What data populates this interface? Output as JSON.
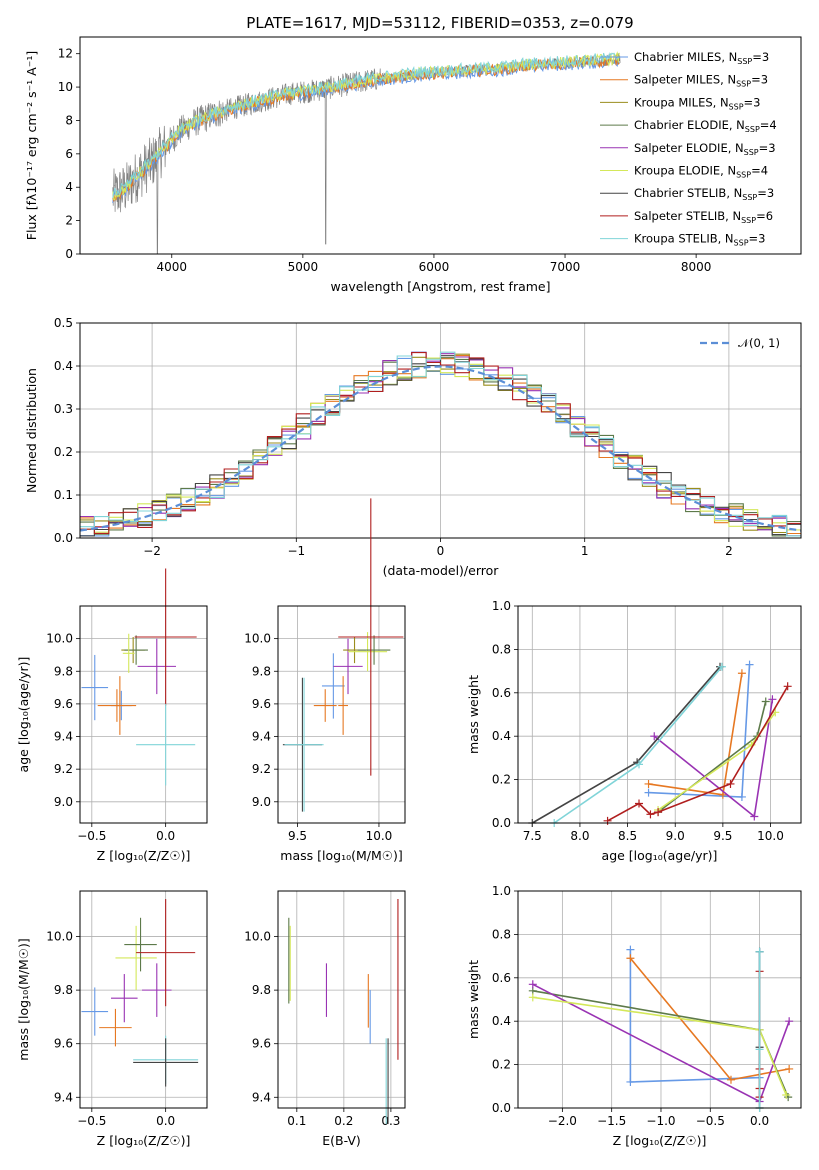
{
  "figure": {
    "title": "PLATE=1617, MJD=53112, FIBERID=0353, z=0.079"
  },
  "colors": {
    "Chabrier MILES": "#6699e6",
    "Salpeter MILES": "#e67822",
    "Kroupa MILES": "#9a8d1d",
    "Chabrier ELODIE": "#5d7a4a",
    "Salpeter ELODIE": "#9933b3",
    "Kroupa ELODIE": "#d4e85a",
    "Chabrier STELIB": "#444444",
    "Salpeter STELIB": "#b01e1e",
    "Kroupa STELIB": "#80d4d8",
    "data": "#808080",
    "normal": "#5b8ed6"
  },
  "chart_data": [
    {
      "id": "spectrum",
      "type": "line",
      "xlabel": "wavelength [Angstrom, rest frame]",
      "ylabel": "Flux [fλ10⁻¹⁷ erg cm⁻² s⁻¹ A⁻¹]",
      "xlim": [
        3300,
        8800
      ],
      "ylim": [
        0,
        13
      ],
      "xticks": [
        4000,
        5000,
        6000,
        7000,
        8000
      ],
      "yticks": [
        0,
        2,
        4,
        6,
        8,
        10,
        12
      ],
      "legend_position": "right",
      "continuum": {
        "x": [
          3550,
          3650,
          3750,
          3850,
          3950,
          4050,
          4150,
          4300,
          4500,
          4700,
          4900,
          5100,
          5300,
          5500,
          5700,
          5900,
          6100,
          6300,
          6500,
          6700,
          6900,
          7100,
          7300,
          7420
        ],
        "y": [
          3.5,
          3.9,
          4.8,
          5.5,
          6.4,
          7.3,
          7.8,
          8.3,
          8.8,
          9.2,
          9.6,
          9.8,
          10.1,
          10.4,
          10.6,
          10.8,
          10.9,
          11.0,
          11.1,
          11.3,
          11.4,
          11.5,
          11.6,
          11.7
        ]
      },
      "series": [
        {
          "name": "Chabrier MILES, N_SSP=3",
          "label_main": "Chabrier MILES, N",
          "label_sub": "SSP",
          "label_tail": "=3"
        },
        {
          "name": "Salpeter MILES, N_SSP=3",
          "label_main": "Salpeter MILES, N",
          "label_sub": "SSP",
          "label_tail": "=3"
        },
        {
          "name": "Kroupa MILES, N_SSP=3",
          "label_main": "Kroupa MILES, N",
          "label_sub": "SSP",
          "label_tail": "=3"
        },
        {
          "name": "Chabrier ELODIE, N_SSP=4",
          "label_main": "Chabrier ELODIE, N",
          "label_sub": "SSP",
          "label_tail": "=4"
        },
        {
          "name": "Salpeter ELODIE, N_SSP=3",
          "label_main": "Salpeter ELODIE, N",
          "label_sub": "SSP",
          "label_tail": "=3"
        },
        {
          "name": "Kroupa ELODIE, N_SSP=4",
          "label_main": "Kroupa ELODIE, N",
          "label_sub": "SSP",
          "label_tail": "=4"
        },
        {
          "name": "Chabrier STELIB, N_SSP=3",
          "label_main": "Chabrier STELIB, N",
          "label_sub": "SSP",
          "label_tail": "=3"
        },
        {
          "name": "Salpeter STELIB, N_SSP=6",
          "label_main": "Salpeter STELIB, N",
          "label_sub": "SSP",
          "label_tail": "=6"
        },
        {
          "name": "Kroupa STELIB, N_SSP=3",
          "label_main": "Kroupa STELIB, N",
          "label_sub": "SSP",
          "label_tail": "=3"
        }
      ]
    },
    {
      "id": "residuals",
      "type": "line",
      "xlabel": "(data-model)/error",
      "ylabel": "Normed distribution",
      "xlim": [
        -2.5,
        2.5
      ],
      "ylim": [
        0,
        0.5
      ],
      "xticks": [
        -2,
        -1,
        0,
        1,
        2
      ],
      "yticks": [
        0.0,
        0.1,
        0.2,
        0.3,
        0.4,
        0.5
      ],
      "grid": true,
      "legend_position": "top-right",
      "legend_label": "𝒩(0, 1)",
      "bin_width": 0.1
    },
    {
      "id": "age-vs-Z",
      "type": "scatter",
      "xlabel": "Z [log₁₀(Z/Z☉)]",
      "ylabel": "age  [log₁₀(age/yr)]",
      "xlim": [
        -0.58,
        0.28
      ],
      "ylim": [
        8.87,
        10.2
      ],
      "xticks": [
        -0.5,
        0.0
      ],
      "yticks": [
        9.0,
        9.2,
        9.4,
        9.6,
        9.8,
        10.0
      ],
      "grid": true,
      "points": [
        {
          "model": "Chabrier MILES",
          "x": -0.48,
          "xerr": 0.09,
          "y": 9.7,
          "yerr": 0.2
        },
        {
          "model": "Chabrier MILES",
          "x": -0.3,
          "xerr": 0.07,
          "y": 9.59,
          "yerr": 0.09
        },
        {
          "model": "Salpeter MILES",
          "x": -0.33,
          "xerr": 0.13,
          "y": 9.59,
          "yerr": 0.1
        },
        {
          "model": "Kroupa MILES",
          "x": -0.22,
          "xerr": 0.08,
          "y": 9.93,
          "yerr": 0.08
        },
        {
          "model": "Chabrier ELODIE",
          "x": -0.2,
          "xerr": 0.08,
          "y": 9.93,
          "yerr": 0.09
        },
        {
          "model": "Salpeter ELODIE",
          "x": -0.06,
          "xerr": 0.13,
          "y": 9.83,
          "yerr": 0.17
        },
        {
          "model": "Kroupa ELODIE",
          "x": -0.25,
          "xerr": 0.04,
          "y": 9.91,
          "yerr": 0.12
        },
        {
          "model": "Salpeter STELIB",
          "x": 0.0,
          "xerr": 0.21,
          "y": 10.01,
          "yerr": 0.42
        },
        {
          "model": "Kroupa STELIB",
          "x": 0.0,
          "xerr": 0.2,
          "y": 9.35,
          "yerr": 0.25
        },
        {
          "model": "Salpeter MILES",
          "x": -0.31,
          "xerr": 0.03,
          "y": 9.59,
          "yerr": 0.18
        }
      ]
    },
    {
      "id": "age-vs-mass",
      "type": "scatter",
      "xlabel": "mass [log₁₀(M/M☉)]",
      "ylabel": "",
      "xlim": [
        9.38,
        10.16
      ],
      "ylim": [
        8.87,
        10.2
      ],
      "xticks": [
        9.5,
        10.0
      ],
      "yticks": [
        9.0,
        9.2,
        9.4,
        9.6,
        9.8,
        10.0
      ],
      "grid": true,
      "points": [
        {
          "model": "Chabrier STELIB",
          "x": 9.53,
          "xerr": 0.12,
          "y": 9.35,
          "yerr": 0.41
        },
        {
          "model": "Kroupa STELIB",
          "x": 9.54,
          "xerr": 0.12,
          "y": 9.35,
          "yerr": 0.41
        },
        {
          "model": "Chabrier MILES",
          "x": 9.72,
          "xerr": 0.07,
          "y": 9.71,
          "yerr": 0.2
        },
        {
          "model": "Salpeter MILES",
          "x": 9.67,
          "xerr": 0.07,
          "y": 9.59,
          "yerr": 0.1
        },
        {
          "model": "Salpeter ELODIE",
          "x": 9.81,
          "xerr": 0.09,
          "y": 9.83,
          "yerr": 0.17
        },
        {
          "model": "Kroupa MILES",
          "x": 9.85,
          "xerr": 0.07,
          "y": 9.93,
          "yerr": 0.08
        },
        {
          "model": "Kroupa ELODIE",
          "x": 9.93,
          "xerr": 0.12,
          "y": 9.92,
          "yerr": 0.12
        },
        {
          "model": "Chabrier ELODIE",
          "x": 9.97,
          "xerr": 0.1,
          "y": 9.93,
          "yerr": 0.09
        },
        {
          "model": "Salpeter STELIB",
          "x": 9.95,
          "xerr": 0.2,
          "y": 10.01,
          "yerr": 0.85
        },
        {
          "model": "Salpeter MILES",
          "x": 9.78,
          "xerr": 0.03,
          "y": 9.59,
          "yerr": 0.18
        }
      ]
    },
    {
      "id": "weight-vs-age",
      "type": "line",
      "xlabel": "age  [log₁₀(age/yr)]",
      "ylabel": "mass weight",
      "xlim": [
        7.35,
        10.32
      ],
      "ylim": [
        0,
        1
      ],
      "xticks": [
        7.5,
        8.0,
        8.5,
        9.0,
        9.5,
        10.0
      ],
      "yticks": [
        0.0,
        0.2,
        0.4,
        0.6,
        0.8,
        1.0
      ],
      "grid": true,
      "series": [
        {
          "model": "Chabrier MILES",
          "x": [
            9.78,
            9.7,
            8.72
          ],
          "y": [
            0.73,
            0.12,
            0.14
          ]
        },
        {
          "model": "Salpeter MILES",
          "x": [
            9.7,
            9.5,
            8.72
          ],
          "y": [
            0.69,
            0.13,
            0.18
          ]
        },
        {
          "model": "Chabrier ELODIE",
          "x": [
            9.95,
            9.86,
            8.82
          ],
          "y": [
            0.56,
            0.4,
            0.05
          ]
        },
        {
          "model": "Salpeter ELODIE",
          "x": [
            10.02,
            9.83,
            8.78
          ],
          "y": [
            0.57,
            0.03,
            0.4
          ]
        },
        {
          "model": "Kroupa ELODIE",
          "x": [
            10.05,
            9.8,
            8.82
          ],
          "y": [
            0.51,
            0.36,
            0.06
          ]
        },
        {
          "model": "Chabrier STELIB",
          "x": [
            9.47,
            8.6,
            7.5
          ],
          "y": [
            0.72,
            0.28,
            0.0
          ]
        },
        {
          "model": "Salpeter STELIB",
          "x": [
            10.18,
            9.58,
            8.82,
            8.74,
            8.62,
            8.29
          ],
          "y": [
            0.63,
            0.18,
            0.05,
            0.04,
            0.09,
            0.01
          ]
        },
        {
          "model": "Kroupa STELIB",
          "x": [
            9.49,
            8.62,
            7.73
          ],
          "y": [
            0.72,
            0.27,
            0.0
          ]
        }
      ]
    },
    {
      "id": "mass-vs-Z",
      "type": "scatter",
      "xlabel": "Z [log₁₀(Z/Z☉)]",
      "ylabel": "mass [log₁₀(M/M☉)]",
      "xlim": [
        -0.58,
        0.28
      ],
      "ylim": [
        9.36,
        10.17
      ],
      "xticks": [
        -0.5,
        0.0
      ],
      "yticks": [
        9.4,
        9.6,
        9.8,
        10.0
      ],
      "grid": true,
      "points": [
        {
          "model": "Chabrier MILES",
          "x": -0.48,
          "xerr": 0.09,
          "y": 9.72,
          "yerr": 0.09
        },
        {
          "model": "Salpeter MILES",
          "x": -0.34,
          "xerr": 0.11,
          "y": 9.66,
          "yerr": 0.07
        },
        {
          "model": "Salpeter ELODIE",
          "x": -0.28,
          "xerr": 0.09,
          "y": 9.77,
          "yerr": 0.09
        },
        {
          "model": "Kroupa ELODIE",
          "x": -0.2,
          "xerr": 0.14,
          "y": 9.92,
          "yerr": 0.12
        },
        {
          "model": "Chabrier ELODIE",
          "x": -0.17,
          "xerr": 0.11,
          "y": 9.97,
          "yerr": 0.1
        },
        {
          "model": "Salpeter ELODIE",
          "x": -0.06,
          "xerr": 0.1,
          "y": 9.8,
          "yerr": 0.1
        },
        {
          "model": "Salpeter STELIB",
          "x": 0.0,
          "xerr": 0.2,
          "y": 9.94,
          "yerr": 0.2
        },
        {
          "model": "Kroupa STELIB",
          "x": 0.0,
          "xerr": 0.22,
          "y": 9.54,
          "yerr": 0.09
        },
        {
          "model": "Chabrier STELIB",
          "x": 0.0,
          "xerr": 0.22,
          "y": 9.53,
          "yerr": 0.09
        }
      ]
    },
    {
      "id": "mass-vs-ebv",
      "type": "scatter",
      "xlabel": "E(B-V)",
      "ylabel": "",
      "xlim": [
        0.06,
        0.33
      ],
      "ylim": [
        9.36,
        10.17
      ],
      "xticks": [
        0.1,
        0.2,
        0.3
      ],
      "yticks": [
        9.4,
        9.6,
        9.8,
        10.0
      ],
      "grid": true,
      "points": [
        {
          "model": "Chabrier ELODIE",
          "x": 0.083,
          "xerr": 0,
          "y": 9.91,
          "yerr": 0.16
        },
        {
          "model": "Kroupa ELODIE",
          "x": 0.086,
          "xerr": 0,
          "y": 9.9,
          "yerr": 0.14
        },
        {
          "model": "Salpeter ELODIE",
          "x": 0.163,
          "xerr": 0,
          "y": 9.8,
          "yerr": 0.1
        },
        {
          "model": "Salpeter MILES",
          "x": 0.252,
          "xerr": 0,
          "y": 9.76,
          "yerr": 0.1
        },
        {
          "model": "Chabrier MILES",
          "x": 0.256,
          "xerr": 0,
          "y": 9.7,
          "yerr": 0.1
        },
        {
          "model": "Kroupa STELIB",
          "x": 0.29,
          "xerr": 0,
          "y": 9.46,
          "yerr": 0.16
        },
        {
          "model": "Chabrier STELIB",
          "x": 0.294,
          "xerr": 0,
          "y": 9.46,
          "yerr": 0.16
        },
        {
          "model": "Salpeter STELIB",
          "x": 0.315,
          "xerr": 0,
          "y": 9.84,
          "yerr": 0.3
        }
      ]
    },
    {
      "id": "weight-vs-Z",
      "type": "line",
      "xlabel": "Z [log₁₀(Z/Z☉)]",
      "ylabel": "mass weight",
      "xlim": [
        -2.45,
        0.42
      ],
      "ylim": [
        0,
        1
      ],
      "xticks": [
        -2.0,
        -1.5,
        -1.0,
        -0.5,
        0.0
      ],
      "yticks": [
        0.0,
        0.2,
        0.4,
        0.6,
        0.8,
        1.0
      ],
      "grid": true,
      "series": [
        {
          "model": "Chabrier MILES",
          "x": [
            -1.31,
            -1.31,
            0.0,
            0.0
          ],
          "y": [
            0.73,
            0.12,
            0.14,
            0.72
          ]
        },
        {
          "model": "Salpeter MILES",
          "x": [
            -1.31,
            -0.29,
            0.3
          ],
          "y": [
            0.69,
            0.13,
            0.18
          ]
        },
        {
          "model": "Chabrier ELODIE",
          "x": [
            -2.3,
            0.0,
            0.29
          ],
          "y": [
            0.54,
            0.36,
            0.05
          ]
        },
        {
          "model": "Salpeter ELODIE",
          "x": [
            -2.3,
            0.0,
            0.3
          ],
          "y": [
            0.57,
            0.03,
            0.4
          ]
        },
        {
          "model": "Kroupa ELODIE",
          "x": [
            -2.3,
            0.0,
            0.27
          ],
          "y": [
            0.51,
            0.36,
            0.06
          ]
        },
        {
          "model": "Chabrier STELIB",
          "x": [
            0.0,
            0.0,
            0.0
          ],
          "y": [
            0.72,
            0.28,
            0.0
          ]
        },
        {
          "model": "Salpeter STELIB",
          "x": [
            0.0,
            0.0,
            0.0,
            0.0
          ],
          "y": [
            0.63,
            0.18,
            0.05,
            0.09
          ]
        },
        {
          "model": "Kroupa STELIB",
          "x": [
            0.0,
            0.0,
            0.0
          ],
          "y": [
            0.72,
            0.27,
            0.0
          ]
        }
      ]
    }
  ]
}
